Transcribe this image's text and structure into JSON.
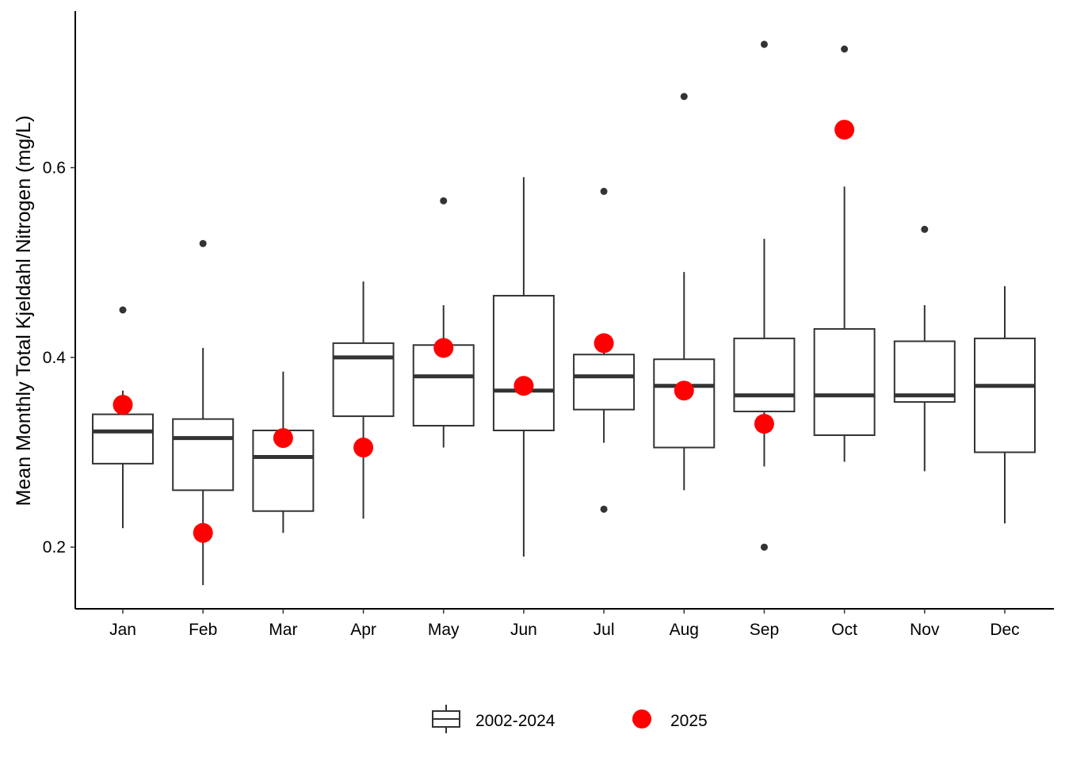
{
  "chart_data": {
    "type": "boxplot",
    "title": "",
    "xlabel": "",
    "ylabel": "Mean Monthly Total Kjeldahl Nitrogen (mg/L)",
    "ylim": [
      0.135,
      0.765
    ],
    "yticks": [
      0.2,
      0.4,
      0.6
    ],
    "ytick_labels": [
      "0.2",
      "0.4",
      "0.6"
    ],
    "grid": false,
    "legend_position": "bottom",
    "categories": [
      "Jan",
      "Feb",
      "Mar",
      "Apr",
      "May",
      "Jun",
      "Jul",
      "Aug",
      "Sep",
      "Oct",
      "Nov",
      "Dec"
    ],
    "series": [
      {
        "name": "2002-2024",
        "kind": "boxplot",
        "color": "#333333",
        "boxes": [
          {
            "whisker_low": 0.22,
            "q1": 0.288,
            "median": 0.322,
            "q3": 0.34,
            "whisker_high": 0.365,
            "outliers": [
              0.45
            ]
          },
          {
            "whisker_low": 0.16,
            "q1": 0.26,
            "median": 0.315,
            "q3": 0.335,
            "whisker_high": 0.41,
            "outliers": [
              0.52
            ]
          },
          {
            "whisker_low": 0.215,
            "q1": 0.238,
            "median": 0.295,
            "q3": 0.323,
            "whisker_high": 0.385,
            "outliers": []
          },
          {
            "whisker_low": 0.23,
            "q1": 0.338,
            "median": 0.4,
            "q3": 0.415,
            "whisker_high": 0.48,
            "outliers": []
          },
          {
            "whisker_low": 0.305,
            "q1": 0.328,
            "median": 0.38,
            "q3": 0.413,
            "whisker_high": 0.455,
            "outliers": [
              0.565
            ]
          },
          {
            "whisker_low": 0.19,
            "q1": 0.323,
            "median": 0.365,
            "q3": 0.465,
            "whisker_high": 0.59,
            "outliers": []
          },
          {
            "whisker_low": 0.31,
            "q1": 0.345,
            "median": 0.38,
            "q3": 0.403,
            "whisker_high": 0.415,
            "outliers": [
              0.575,
              0.24
            ]
          },
          {
            "whisker_low": 0.26,
            "q1": 0.305,
            "median": 0.37,
            "q3": 0.398,
            "whisker_high": 0.49,
            "outliers": [
              0.675
            ]
          },
          {
            "whisker_low": 0.285,
            "q1": 0.343,
            "median": 0.36,
            "q3": 0.42,
            "whisker_high": 0.525,
            "outliers": [
              0.73,
              0.2
            ]
          },
          {
            "whisker_low": 0.29,
            "q1": 0.318,
            "median": 0.36,
            "q3": 0.43,
            "whisker_high": 0.58,
            "outliers": [
              0.725
            ]
          },
          {
            "whisker_low": 0.28,
            "q1": 0.353,
            "median": 0.36,
            "q3": 0.417,
            "whisker_high": 0.455,
            "outliers": [
              0.535
            ]
          },
          {
            "whisker_low": 0.225,
            "q1": 0.3,
            "median": 0.37,
            "q3": 0.42,
            "whisker_high": 0.475,
            "outliers": []
          }
        ]
      },
      {
        "name": "2025",
        "kind": "point",
        "color": "#ff0000",
        "values": [
          0.35,
          0.215,
          0.315,
          0.305,
          0.41,
          0.37,
          0.415,
          0.365,
          0.33,
          0.64,
          null,
          null
        ]
      }
    ]
  },
  "legend": {
    "items": [
      {
        "label": "2002-2024",
        "symbol": "box"
      },
      {
        "label": "2025",
        "symbol": "point"
      }
    ]
  }
}
